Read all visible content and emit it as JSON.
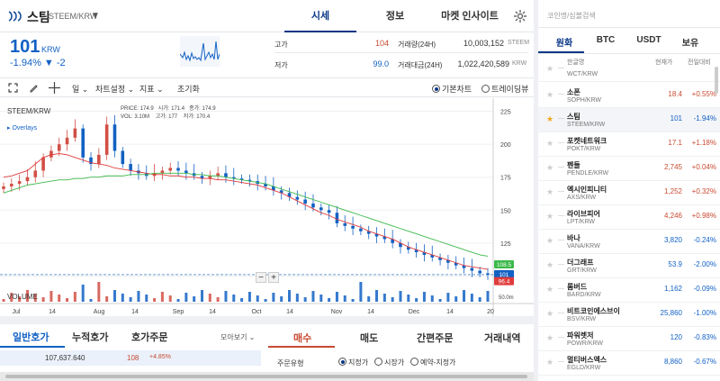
{
  "header": {
    "coin_name": "스팀",
    "coin_pair": "STEEM/KRW",
    "tabs": [
      "시세",
      "정보",
      "마켓 인사이트"
    ]
  },
  "price": {
    "current": "101",
    "unit": "KRW",
    "change": "-1.94% ▼ -2",
    "high_label": "고가",
    "high": "104",
    "low_label": "저가",
    "low": "99.0",
    "vol_label": "거래량(24H)",
    "vol": "10,003,152",
    "vol_unit": "STEEM",
    "amt_label": "거래대금(24H)",
    "amt": "1,022,420,589",
    "amt_unit": "KRW"
  },
  "toolbar": {
    "interval": "일",
    "chart_settings": "차트설정",
    "indicators": "지표",
    "reset": "초기화",
    "basic_chart": "기본차트",
    "tradingview": "트레이딩뷰"
  },
  "chart_overlay": {
    "pair": "STEEM/KRW",
    "overlays": "Overlays",
    "price_label": "PRICE:",
    "price_val": "174.9",
    "open_label": "시가:",
    "open_val": "171.4",
    "close_label": "종가:",
    "close_val": "174.9",
    "vol_label": "VOL:",
    "vol_val": "3.10M",
    "high_label": "고가:",
    "high_val": "177",
    "low_label": "저가:",
    "low_val": "170.4",
    "volume_title": "VOLUME",
    "vol_axis": "50.0m",
    "zoom_out": "−",
    "zoom_in": "+"
  },
  "chart_data": {
    "type": "candlestick",
    "y_ticks": [
      225,
      200,
      175,
      150,
      125,
      100
    ],
    "x_ticks": [
      "Jul",
      "14",
      "Aug",
      "14",
      "Sep",
      "14",
      "Oct",
      "14",
      "Nov",
      "14",
      "Dec",
      "14",
      "20"
    ],
    "ylim": [
      90,
      235
    ],
    "price_tags": [
      "108.5",
      "101",
      "96.4"
    ],
    "series": [
      {
        "name": "close",
        "values": [
          168,
          170,
          172,
          175,
          180,
          190,
          195,
          200,
          205,
          212,
          190,
          185,
          192,
          215,
          195,
          185,
          180,
          178,
          176,
          178,
          180,
          182,
          180,
          178,
          176,
          174,
          176,
          178,
          175,
          174,
          173,
          172,
          170,
          168,
          165,
          163,
          160,
          158,
          155,
          152,
          150,
          148,
          140,
          138,
          136,
          134,
          132,
          130,
          128,
          125,
          122,
          120,
          118,
          116,
          114,
          112,
          110,
          108,
          106,
          104,
          102,
          101
        ]
      },
      {
        "name": "ma_short",
        "values": [
          175,
          176,
          178,
          180,
          185,
          190,
          192,
          193,
          192,
          190,
          188,
          186,
          185,
          184,
          182,
          181,
          180,
          179,
          178,
          177,
          177,
          176,
          176,
          175,
          175,
          174,
          174,
          173,
          173,
          172,
          171,
          170,
          169,
          167,
          165,
          163,
          160,
          157,
          154,
          151,
          148,
          146,
          143,
          141,
          139,
          137,
          134,
          132,
          130,
          128,
          125,
          122,
          120,
          118,
          116,
          114,
          112,
          110,
          108,
          107,
          106,
          105
        ]
      },
      {
        "name": "ma_long",
        "values": [
          163,
          165,
          167,
          169,
          170,
          171,
          172,
          173,
          173,
          174,
          174,
          175,
          175,
          176,
          176,
          176,
          177,
          177,
          177,
          178,
          178,
          178,
          178,
          178,
          177,
          177,
          176,
          176,
          175,
          174,
          173,
          172,
          171,
          170,
          168,
          166,
          164,
          162,
          160,
          158,
          156,
          154,
          152,
          150,
          148,
          146,
          144,
          142,
          140,
          138,
          136,
          134,
          132,
          130,
          128,
          126,
          124,
          122,
          120,
          118,
          116,
          115
        ]
      }
    ]
  },
  "orderbook": {
    "tabs": [
      "일반호가",
      "누적호가",
      "호가주문"
    ],
    "view_all": "모아보기",
    "row_volume": "107,637.640",
    "row_price": "108",
    "row_change": "+4.85%"
  },
  "order": {
    "tabs": [
      "매수",
      "매도",
      "간편주문",
      "거래내역"
    ],
    "type_label": "주문유형",
    "types": [
      "지정가",
      "시장가",
      "예약-지정가"
    ]
  },
  "sidebar": {
    "search_placeholder": "코인명/심볼검색",
    "tabs": [
      "원화",
      "BTC",
      "USDT",
      "보유"
    ],
    "col_name": "한글명",
    "col_price": "현재가",
    "col_change": "전일대비",
    "rows": [
      {
        "name": "",
        "pair": "WCT/KRW",
        "price": "",
        "change": "",
        "dir": "dn"
      },
      {
        "name": "소폰",
        "pair": "SOPH/KRW",
        "price": "18.4",
        "change": "+0.55%",
        "dir": "up"
      },
      {
        "name": "스팀",
        "pair": "STEEM/KRW",
        "price": "101",
        "change": "-1.94%",
        "dir": "dn"
      },
      {
        "name": "포켓네트워크",
        "pair": "POKT/KRW",
        "price": "17.1",
        "change": "+1.18%",
        "dir": "up"
      },
      {
        "name": "펜들",
        "pair": "PENDLE/KRW",
        "price": "2,745",
        "change": "+0.04%",
        "dir": "up"
      },
      {
        "name": "엑시인피니티",
        "pair": "AXS/KRW",
        "price": "1,252",
        "change": "+0.32%",
        "dir": "up"
      },
      {
        "name": "라이브피어",
        "pair": "LPT/KRW",
        "price": "4,246",
        "change": "+0.98%",
        "dir": "up"
      },
      {
        "name": "바나",
        "pair": "VANA/KRW",
        "price": "3,820",
        "change": "-0.24%",
        "dir": "dn"
      },
      {
        "name": "더그래프",
        "pair": "GRT/KRW",
        "price": "53.9",
        "change": "-2.00%",
        "dir": "dn"
      },
      {
        "name": "롬버드",
        "pair": "BARD/KRW",
        "price": "1,162",
        "change": "-0.09%",
        "dir": "dn"
      },
      {
        "name": "비트코인에스브이",
        "pair": "BSV/KRW",
        "price": "25,860",
        "change": "-1.00%",
        "dir": "dn"
      },
      {
        "name": "파워렛저",
        "pair": "POWR/KRW",
        "price": "120",
        "change": "-0.83%",
        "dir": "dn"
      },
      {
        "name": "멀티버스엑스",
        "pair": "EGLD/KRW",
        "price": "8,860",
        "change": "-0.67%",
        "dir": "dn"
      }
    ]
  },
  "colors": {
    "up": "#c84a31",
    "down": "#1261c4",
    "accent": "#093687",
    "ma_short": "#e03c3c",
    "ma_long": "#3cb94a"
  }
}
